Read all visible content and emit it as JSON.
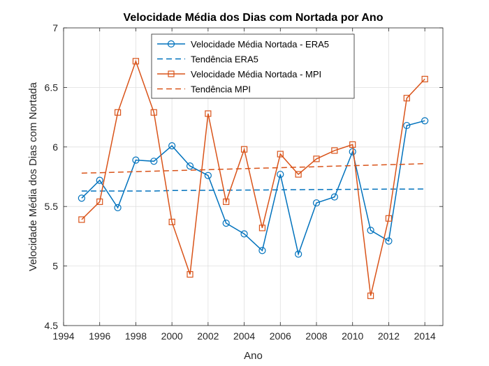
{
  "chart_data": {
    "type": "line",
    "title": "Velocidade Média dos Dias com Nortada por Ano",
    "xlabel": "Ano",
    "ylabel": "Velocidade Média dos Dias com Nortada",
    "xlim": [
      1994,
      2015
    ],
    "ylim": [
      4.5,
      7
    ],
    "xticks": [
      "1994",
      "1996",
      "1998",
      "2000",
      "2002",
      "2004",
      "2006",
      "2008",
      "2010",
      "2012",
      "2014"
    ],
    "yticks": [
      "4.5",
      "5",
      "5.5",
      "6",
      "6.5",
      "7"
    ],
    "grid": true,
    "legend_position": "top-center",
    "x": [
      1995,
      1996,
      1997,
      1998,
      1999,
      2000,
      2001,
      2002,
      2003,
      2004,
      2005,
      2006,
      2007,
      2008,
      2009,
      2010,
      2011,
      2012,
      2013,
      2014
    ],
    "series": [
      {
        "name": "Velocidade Média Nortada - ERA5",
        "color": "#0072BD",
        "marker": "circle",
        "style": "solid",
        "values": [
          5.57,
          5.72,
          5.49,
          5.89,
          5.88,
          6.01,
          5.84,
          5.76,
          5.36,
          5.27,
          5.13,
          5.77,
          5.1,
          5.53,
          5.58,
          5.96,
          5.3,
          5.21,
          6.18,
          6.22
        ]
      },
      {
        "name": "Tendência ERA5",
        "color": "#0072BD",
        "marker": "none",
        "style": "dashed",
        "values": [
          5.63,
          5.63,
          5.63,
          5.63,
          5.63,
          5.634,
          5.635,
          5.636,
          5.637,
          5.638,
          5.639,
          5.64,
          5.641,
          5.642,
          5.643,
          5.644,
          5.645,
          5.646,
          5.646,
          5.647
        ]
      },
      {
        "name": "Velocidade Média Nortada - MPI",
        "color": "#D95319",
        "marker": "square",
        "style": "solid",
        "values": [
          5.39,
          5.54,
          6.29,
          6.72,
          6.29,
          5.37,
          4.93,
          6.28,
          5.54,
          5.98,
          5.32,
          5.94,
          5.77,
          5.9,
          5.97,
          6.02,
          4.75,
          5.4,
          6.41,
          6.57
        ]
      },
      {
        "name": "Tendência MPI",
        "color": "#D95319",
        "marker": "none",
        "style": "dashed",
        "values": [
          5.78,
          5.784,
          5.788,
          5.792,
          5.797,
          5.801,
          5.805,
          5.809,
          5.813,
          5.818,
          5.822,
          5.826,
          5.83,
          5.834,
          5.839,
          5.843,
          5.847,
          5.851,
          5.855,
          5.86
        ]
      }
    ]
  }
}
